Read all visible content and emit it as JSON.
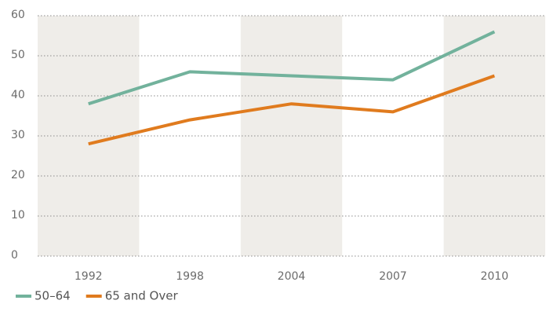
{
  "chart_data": {
    "type": "line",
    "categories": [
      "1992",
      "1998",
      "2004",
      "2007",
      "2010"
    ],
    "series": [
      {
        "name": "50–64",
        "color": "#72b29c",
        "values": [
          38,
          46,
          45,
          44,
          56
        ]
      },
      {
        "name": "65 and Over",
        "color": "#e07b1e",
        "values": [
          28,
          34,
          38,
          36,
          45
        ]
      }
    ],
    "ylim": [
      0,
      60
    ],
    "yticks": [
      0,
      10,
      20,
      30,
      40,
      50,
      60
    ],
    "grid": true
  }
}
